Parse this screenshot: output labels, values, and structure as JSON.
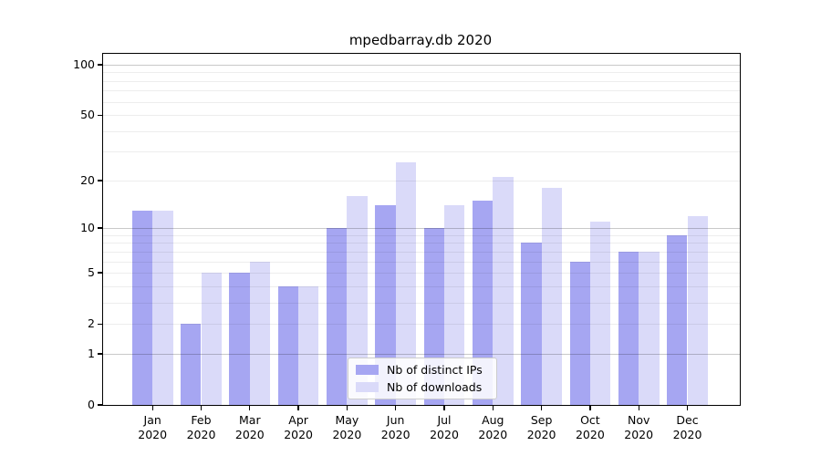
{
  "title": "mpedbarray.db 2020",
  "colors": {
    "distinct_ips": "#a6a6f2",
    "downloads": "#dadaf9",
    "grid_minor": "#ededed",
    "grid_major": "#c9c9c9",
    "axis": "#000000",
    "legend_border": "#cccccc"
  },
  "legend": {
    "items": [
      {
        "label": "Nb of distinct IPs",
        "color_key": "distinct_ips"
      },
      {
        "label": "Nb of downloads",
        "color_key": "downloads"
      }
    ]
  },
  "y_axis": {
    "ticks": [
      {
        "label": "100",
        "value": 100
      },
      {
        "label": "50",
        "value": 50
      },
      {
        "label": "20",
        "value": 20
      },
      {
        "label": "10",
        "value": 10
      },
      {
        "label": "5",
        "value": 5
      },
      {
        "label": "2",
        "value": 2
      },
      {
        "label": "1",
        "value": 1
      },
      {
        "label": "0",
        "value": 0
      }
    ],
    "minor_grid_values": [
      2,
      3,
      4,
      5,
      6,
      7,
      8,
      9,
      20,
      30,
      40,
      50,
      60,
      70,
      80,
      90
    ],
    "major_grid_values": [
      1,
      10,
      100
    ]
  },
  "x_axis": {
    "months": [
      "Jan",
      "Feb",
      "Mar",
      "Apr",
      "May",
      "Jun",
      "Jul",
      "Aug",
      "Sep",
      "Oct",
      "Nov",
      "Dec"
    ],
    "year": "2020"
  },
  "chart_data": {
    "type": "bar",
    "title": "mpedbarray.db 2020",
    "categories": [
      "Jan 2020",
      "Feb 2020",
      "Mar 2020",
      "Apr 2020",
      "May 2020",
      "Jun 2020",
      "Jul 2020",
      "Aug 2020",
      "Sep 2020",
      "Oct 2020",
      "Nov 2020",
      "Dec 2020"
    ],
    "series": [
      {
        "name": "Nb of distinct IPs",
        "color_key": "distinct_ips",
        "values": [
          13,
          2,
          5,
          4,
          10,
          14,
          10,
          15,
          8,
          6,
          7,
          9
        ]
      },
      {
        "name": "Nb of downloads",
        "color_key": "downloads",
        "values": [
          13,
          5,
          6,
          4,
          16,
          26,
          14,
          21,
          18,
          11,
          7,
          12
        ]
      }
    ],
    "yscale": "log1p",
    "ylim": [
      0,
      116
    ],
    "y_tick_values": [
      0,
      1,
      2,
      5,
      10,
      20,
      50,
      100
    ],
    "grid": true,
    "legend_position": "lower center"
  }
}
